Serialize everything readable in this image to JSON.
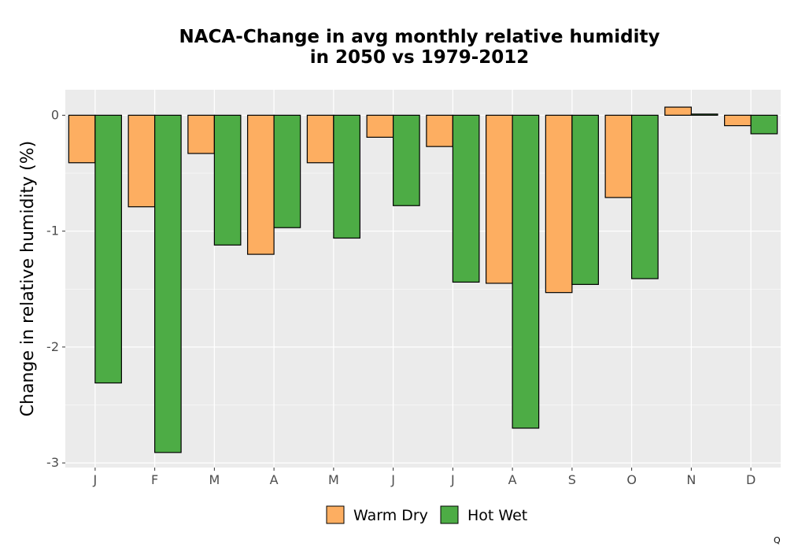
{
  "chart_data": {
    "type": "bar",
    "title": [
      "NACA-Change in avg monthly relative humidity",
      "in 2050 vs 1979-2012"
    ],
    "xlabel": "",
    "ylabel": "Change in relative humidity (%)",
    "categories": [
      "J",
      "F",
      "M",
      "A",
      "M",
      "J",
      "J",
      "A",
      "S",
      "O",
      "N",
      "D"
    ],
    "series": [
      {
        "name": "Warm Dry",
        "color": "#FDAE61",
        "values": [
          -0.41,
          -0.79,
          -0.33,
          -1.2,
          -0.41,
          -0.19,
          -0.27,
          -1.45,
          -1.53,
          -0.71,
          0.07,
          -0.09
        ]
      },
      {
        "name": "Hot Wet",
        "color": "#4DAC45",
        "values": [
          -2.31,
          -2.91,
          -1.12,
          -0.97,
          -1.06,
          -0.78,
          -1.44,
          -2.7,
          -1.46,
          -1.41,
          0.01,
          -0.16
        ]
      }
    ],
    "yticks": [
      0,
      -1,
      -2,
      -3
    ],
    "ytick_labels": [
      "0",
      "-1",
      "-2",
      "-3"
    ],
    "ylim": [
      -3.04,
      0.22
    ],
    "grid": true,
    "legend_position": "bottom"
  },
  "corner_mark": "Q"
}
